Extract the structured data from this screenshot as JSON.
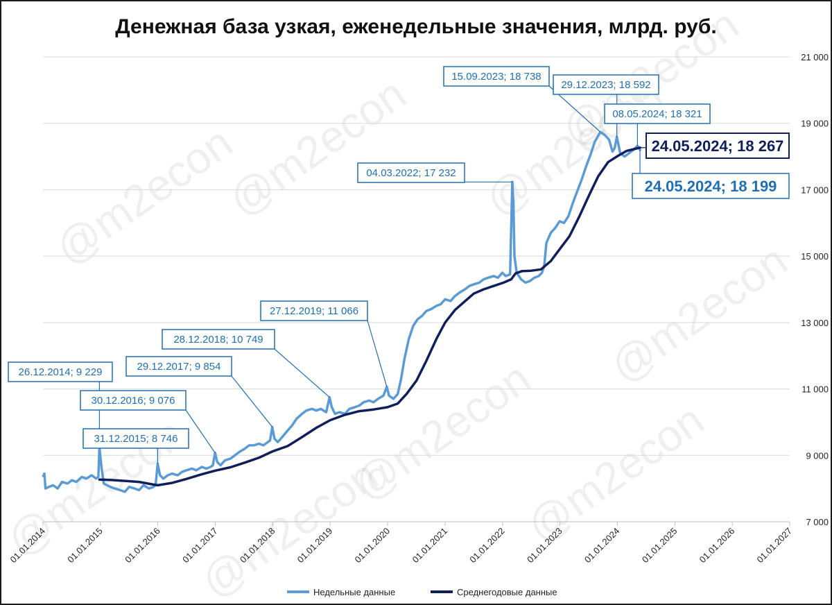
{
  "colors": {
    "weekly": "#5b9bd5",
    "average": "#0f1f5c",
    "annotation": "#1f6fb5",
    "grid": "#d9d9d9"
  },
  "watermark": "@m2econ",
  "chart_data": {
    "type": "line",
    "title": "Денежная база узкая, еженедельные значения, млрд. руб.",
    "ylim": [
      7000,
      21000
    ],
    "y_ticks": [
      7000,
      9000,
      11000,
      13000,
      15000,
      17000,
      19000,
      21000
    ],
    "y_tick_labels": [
      "7 000",
      "9 000",
      "11 000",
      "13 000",
      "15 000",
      "17 000",
      "19 000",
      "21 000"
    ],
    "x_range": [
      "2014-01-01",
      "2027-01-01"
    ],
    "x_tick_labels": [
      "01.01.2014",
      "01.01.2015",
      "01.01.2016",
      "01.01.2017",
      "01.01.2018",
      "01.01.2019",
      "01.01.2020",
      "01.01.2021",
      "01.01.2022",
      "01.01.2023",
      "01.01.2024",
      "01.01.2025",
      "01.01.2026",
      "01.01.2027"
    ],
    "grid": "horizontal",
    "legend_position": "bottom",
    "series": [
      {
        "name": "Недельные данные",
        "points": [
          [
            "2014-01-03",
            8380
          ],
          [
            "2014-01-10",
            8450
          ],
          [
            "2014-01-17",
            8000
          ],
          [
            "2014-02-07",
            8050
          ],
          [
            "2014-03-07",
            8100
          ],
          [
            "2014-04-04",
            8000
          ],
          [
            "2014-05-02",
            8200
          ],
          [
            "2014-06-06",
            8150
          ],
          [
            "2014-07-04",
            8250
          ],
          [
            "2014-08-01",
            8200
          ],
          [
            "2014-09-05",
            8350
          ],
          [
            "2014-10-03",
            8300
          ],
          [
            "2014-11-07",
            8400
          ],
          [
            "2014-12-05",
            8300
          ],
          [
            "2014-12-19",
            8350
          ],
          [
            "2014-12-26",
            9229
          ],
          [
            "2015-01-09",
            8600
          ],
          [
            "2015-01-23",
            8150
          ],
          [
            "2015-03-06",
            8050
          ],
          [
            "2015-04-03",
            8000
          ],
          [
            "2015-05-08",
            7950
          ],
          [
            "2015-06-05",
            7900
          ],
          [
            "2015-07-03",
            8050
          ],
          [
            "2015-08-07",
            8000
          ],
          [
            "2015-09-04",
            7950
          ],
          [
            "2015-10-02",
            8100
          ],
          [
            "2015-11-06",
            8000
          ],
          [
            "2015-12-04",
            8050
          ],
          [
            "2015-12-18",
            8100
          ],
          [
            "2015-12-31",
            8746
          ],
          [
            "2016-01-15",
            8400
          ],
          [
            "2016-02-05",
            8300
          ],
          [
            "2016-03-04",
            8400
          ],
          [
            "2016-04-01",
            8450
          ],
          [
            "2016-05-06",
            8400
          ],
          [
            "2016-06-03",
            8500
          ],
          [
            "2016-07-01",
            8550
          ],
          [
            "2016-08-05",
            8600
          ],
          [
            "2016-09-02",
            8550
          ],
          [
            "2016-10-07",
            8650
          ],
          [
            "2016-11-04",
            8600
          ],
          [
            "2016-12-02",
            8650
          ],
          [
            "2016-12-16",
            8700
          ],
          [
            "2016-12-30",
            9076
          ],
          [
            "2017-01-13",
            8800
          ],
          [
            "2017-02-03",
            8700
          ],
          [
            "2017-03-03",
            8850
          ],
          [
            "2017-04-07",
            8900
          ],
          [
            "2017-05-05",
            9000
          ],
          [
            "2017-06-02",
            9100
          ],
          [
            "2017-07-07",
            9200
          ],
          [
            "2017-08-04",
            9300
          ],
          [
            "2017-09-01",
            9300
          ],
          [
            "2017-10-06",
            9350
          ],
          [
            "2017-11-03",
            9300
          ],
          [
            "2017-12-01",
            9400
          ],
          [
            "2017-12-15",
            9450
          ],
          [
            "2017-12-29",
            9854
          ],
          [
            "2018-01-12",
            9500
          ],
          [
            "2018-02-02",
            9400
          ],
          [
            "2018-03-02",
            9550
          ],
          [
            "2018-04-06",
            9750
          ],
          [
            "2018-05-04",
            9900
          ],
          [
            "2018-06-01",
            10100
          ],
          [
            "2018-07-06",
            10250
          ],
          [
            "2018-08-03",
            10350
          ],
          [
            "2018-09-07",
            10400
          ],
          [
            "2018-10-05",
            10350
          ],
          [
            "2018-11-02",
            10400
          ],
          [
            "2018-12-07",
            10300
          ],
          [
            "2018-12-28",
            10749
          ],
          [
            "2019-01-11",
            10450
          ],
          [
            "2019-02-01",
            10250
          ],
          [
            "2019-03-01",
            10300
          ],
          [
            "2019-04-05",
            10250
          ],
          [
            "2019-05-03",
            10400
          ],
          [
            "2019-06-07",
            10450
          ],
          [
            "2019-07-05",
            10500
          ],
          [
            "2019-08-02",
            10600
          ],
          [
            "2019-09-06",
            10650
          ],
          [
            "2019-10-04",
            10600
          ],
          [
            "2019-11-01",
            10700
          ],
          [
            "2019-12-06",
            10800
          ],
          [
            "2019-12-27",
            11066
          ],
          [
            "2020-01-10",
            10800
          ],
          [
            "2020-02-07",
            10700
          ],
          [
            "2020-03-06",
            10850
          ],
          [
            "2020-03-27",
            11300
          ],
          [
            "2020-04-17",
            11900
          ],
          [
            "2020-05-15",
            12500
          ],
          [
            "2020-06-12",
            12900
          ],
          [
            "2020-07-10",
            13100
          ],
          [
            "2020-08-07",
            13200
          ],
          [
            "2020-09-04",
            13350
          ],
          [
            "2020-10-02",
            13400
          ],
          [
            "2020-11-06",
            13500
          ],
          [
            "2020-12-04",
            13550
          ],
          [
            "2021-01-01",
            13700
          ],
          [
            "2021-02-05",
            13650
          ],
          [
            "2021-03-05",
            13800
          ],
          [
            "2021-04-02",
            13900
          ],
          [
            "2021-05-07",
            14000
          ],
          [
            "2021-06-04",
            14100
          ],
          [
            "2021-07-02",
            14150
          ],
          [
            "2021-08-06",
            14200
          ],
          [
            "2021-09-03",
            14300
          ],
          [
            "2021-10-01",
            14350
          ],
          [
            "2021-11-05",
            14400
          ],
          [
            "2021-12-03",
            14350
          ],
          [
            "2021-12-31",
            14500
          ],
          [
            "2022-01-21",
            14400
          ],
          [
            "2022-02-18",
            14450
          ],
          [
            "2022-03-04",
            17232
          ],
          [
            "2022-03-11",
            16600
          ],
          [
            "2022-03-18",
            15000
          ],
          [
            "2022-04-01",
            14500
          ],
          [
            "2022-04-29",
            14300
          ],
          [
            "2022-05-27",
            14200
          ],
          [
            "2022-06-24",
            14250
          ],
          [
            "2022-07-22",
            14350
          ],
          [
            "2022-08-19",
            14400
          ],
          [
            "2022-09-09",
            14500
          ],
          [
            "2022-09-23",
            14700
          ],
          [
            "2022-10-07",
            15400
          ],
          [
            "2022-11-04",
            15700
          ],
          [
            "2022-12-02",
            15850
          ],
          [
            "2022-12-30",
            16050
          ],
          [
            "2023-01-27",
            16000
          ],
          [
            "2023-02-24",
            16200
          ],
          [
            "2023-03-24",
            16600
          ],
          [
            "2023-04-21",
            16950
          ],
          [
            "2023-05-19",
            17300
          ],
          [
            "2023-06-16",
            17700
          ],
          [
            "2023-07-14",
            18050
          ],
          [
            "2023-08-11",
            18450
          ],
          [
            "2023-09-15",
            18738
          ],
          [
            "2023-10-13",
            18650
          ],
          [
            "2023-11-10",
            18500
          ],
          [
            "2023-12-01",
            18150
          ],
          [
            "2023-12-15",
            18250
          ],
          [
            "2023-12-29",
            18592
          ],
          [
            "2024-01-19",
            18100
          ],
          [
            "2024-02-16",
            18000
          ],
          [
            "2024-03-15",
            18100
          ],
          [
            "2024-04-12",
            18200
          ],
          [
            "2024-05-08",
            18321
          ],
          [
            "2024-05-24",
            18199
          ]
        ]
      },
      {
        "name": "Среднегодовые данные",
        "points": [
          [
            "2014-12-26",
            8270
          ],
          [
            "2015-03-06",
            8260
          ],
          [
            "2015-06-05",
            8230
          ],
          [
            "2015-09-04",
            8200
          ],
          [
            "2015-12-04",
            8120
          ],
          [
            "2016-01-01",
            8100
          ],
          [
            "2016-04-01",
            8170
          ],
          [
            "2016-07-01",
            8290
          ],
          [
            "2016-10-07",
            8430
          ],
          [
            "2017-01-01",
            8540
          ],
          [
            "2017-04-07",
            8640
          ],
          [
            "2017-07-07",
            8780
          ],
          [
            "2017-10-06",
            8930
          ],
          [
            "2018-01-01",
            9120
          ],
          [
            "2018-04-06",
            9280
          ],
          [
            "2018-07-06",
            9550
          ],
          [
            "2018-10-05",
            9830
          ],
          [
            "2019-01-01",
            10060
          ],
          [
            "2019-04-05",
            10220
          ],
          [
            "2019-07-05",
            10330
          ],
          [
            "2019-10-04",
            10380
          ],
          [
            "2020-01-01",
            10450
          ],
          [
            "2020-03-06",
            10560
          ],
          [
            "2020-05-01",
            10850
          ],
          [
            "2020-07-03",
            11250
          ],
          [
            "2020-09-04",
            11850
          ],
          [
            "2020-11-06",
            12500
          ],
          [
            "2021-01-01",
            13000
          ],
          [
            "2021-03-05",
            13380
          ],
          [
            "2021-05-07",
            13640
          ],
          [
            "2021-07-02",
            13870
          ],
          [
            "2021-09-03",
            14000
          ],
          [
            "2021-11-05",
            14100
          ],
          [
            "2022-01-07",
            14200
          ],
          [
            "2022-02-25",
            14300
          ],
          [
            "2022-03-25",
            14480
          ],
          [
            "2022-05-06",
            14550
          ],
          [
            "2022-07-01",
            14560
          ],
          [
            "2022-09-02",
            14600
          ],
          [
            "2022-11-04",
            14850
          ],
          [
            "2023-01-06",
            15250
          ],
          [
            "2023-03-03",
            15600
          ],
          [
            "2023-05-05",
            16200
          ],
          [
            "2023-07-07",
            16850
          ],
          [
            "2023-09-01",
            17400
          ],
          [
            "2023-11-03",
            17830
          ],
          [
            "2024-01-05",
            18020
          ],
          [
            "2024-03-01",
            18170
          ],
          [
            "2024-05-24",
            18267
          ]
        ]
      }
    ],
    "annotations": [
      {
        "date": "2014-12-26",
        "value": 9229,
        "text": "26.12.2014; 9 229",
        "style": "small"
      },
      {
        "date": "2015-12-31",
        "value": 8746,
        "text": "31.12.2015; 8 746",
        "style": "small"
      },
      {
        "date": "2016-12-30",
        "value": 9076,
        "text": "30.12.2016; 9 076",
        "style": "small"
      },
      {
        "date": "2017-12-29",
        "value": 9854,
        "text": "29.12.2017; 9 854",
        "style": "small"
      },
      {
        "date": "2018-12-28",
        "value": 10749,
        "text": "28.12.2018; 10 749",
        "style": "small"
      },
      {
        "date": "2019-12-27",
        "value": 11066,
        "text": "27.12.2019; 11 066",
        "style": "small"
      },
      {
        "date": "2022-03-04",
        "value": 17232,
        "text": "04.03.2022; 17 232",
        "style": "small"
      },
      {
        "date": "2023-09-15",
        "value": 18738,
        "text": "15.09.2023; 18 738",
        "style": "small"
      },
      {
        "date": "2023-12-29",
        "value": 18592,
        "text": "29.12.2023; 18 592",
        "style": "small"
      },
      {
        "date": "2024-05-08",
        "value": 18321,
        "text": "08.05.2024; 18 321",
        "style": "small"
      },
      {
        "date": "2024-05-24",
        "value": 18267,
        "text": "24.05.2024; 18 267",
        "style": "big-dark"
      },
      {
        "date": "2024-05-24",
        "value": 18199,
        "text": "24.05.2024; 18 199",
        "style": "big-light"
      }
    ]
  }
}
